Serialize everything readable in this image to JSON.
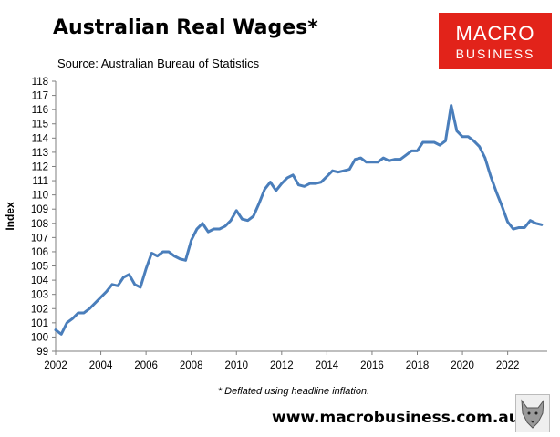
{
  "header": {
    "title": "Australian Real Wages*",
    "source": "Source: Australian Bureau of Statistics"
  },
  "logo": {
    "line1": "MACRO",
    "line2": "BUSINESS",
    "bg_color": "#e2231a"
  },
  "footnote": "* Deflated using headline inflation.",
  "url": "www.macrobusiness.com.au",
  "chart_data": {
    "type": "line",
    "title": "",
    "xlabel": "",
    "ylabel": "Index",
    "xlim": [
      2002,
      2023.75
    ],
    "ylim": [
      99,
      118
    ],
    "yticks": [
      99,
      100,
      101,
      102,
      103,
      104,
      105,
      106,
      107,
      108,
      109,
      110,
      111,
      112,
      113,
      114,
      115,
      116,
      117,
      118
    ],
    "xticks": [
      2002,
      2004,
      2006,
      2008,
      2010,
      2012,
      2014,
      2016,
      2018,
      2020,
      2022
    ],
    "grid": false,
    "legend": "none",
    "line_color": "#4a7ebb",
    "x": [
      2002.0,
      2002.25,
      2002.5,
      2002.75,
      2003.0,
      2003.25,
      2003.5,
      2003.75,
      2004.0,
      2004.25,
      2004.5,
      2004.75,
      2005.0,
      2005.25,
      2005.5,
      2005.75,
      2006.0,
      2006.25,
      2006.5,
      2006.75,
      2007.0,
      2007.25,
      2007.5,
      2007.75,
      2008.0,
      2008.25,
      2008.5,
      2008.75,
      2009.0,
      2009.25,
      2009.5,
      2009.75,
      2010.0,
      2010.25,
      2010.5,
      2010.75,
      2011.0,
      2011.25,
      2011.5,
      2011.75,
      2012.0,
      2012.25,
      2012.5,
      2012.75,
      2013.0,
      2013.25,
      2013.5,
      2013.75,
      2014.0,
      2014.25,
      2014.5,
      2014.75,
      2015.0,
      2015.25,
      2015.5,
      2015.75,
      2016.0,
      2016.25,
      2016.5,
      2016.75,
      2017.0,
      2017.25,
      2017.5,
      2017.75,
      2018.0,
      2018.25,
      2018.5,
      2018.75,
      2019.0,
      2019.25,
      2019.5,
      2019.75,
      2020.0,
      2020.25,
      2020.5,
      2020.75,
      2021.0,
      2021.25,
      2021.5,
      2021.75,
      2022.0,
      2022.25,
      2022.5,
      2022.75,
      2023.0,
      2023.25,
      2023.5
    ],
    "series": [
      {
        "values": [
          100.5,
          100.2,
          101.0,
          101.3,
          101.7,
          101.7,
          102.0,
          102.4,
          102.8,
          103.2,
          103.7,
          103.6,
          104.2,
          104.4,
          103.7,
          103.5,
          104.8,
          105.9,
          105.7,
          106.0,
          106.0,
          105.7,
          105.5,
          105.4,
          106.8,
          107.6,
          108.0,
          107.4,
          107.6,
          107.6,
          107.8,
          108.2,
          108.9,
          108.3,
          108.2,
          108.5,
          109.4,
          110.4,
          110.9,
          110.3,
          110.8,
          111.2,
          111.4,
          110.7,
          110.6,
          110.8,
          110.8,
          110.9,
          111.3,
          111.7,
          111.6,
          111.7,
          111.8,
          112.5,
          112.6,
          112.3,
          112.3,
          112.3,
          112.6,
          112.4,
          112.5,
          112.5,
          112.8,
          113.1,
          113.1,
          113.7,
          113.7,
          113.7,
          113.5,
          113.8,
          116.3,
          114.5,
          114.1,
          114.1,
          113.8,
          113.4,
          112.6,
          111.3,
          110.2,
          109.2,
          108.1,
          107.6,
          107.7,
          107.7,
          108.2,
          108.0,
          107.9
        ]
      }
    ]
  }
}
